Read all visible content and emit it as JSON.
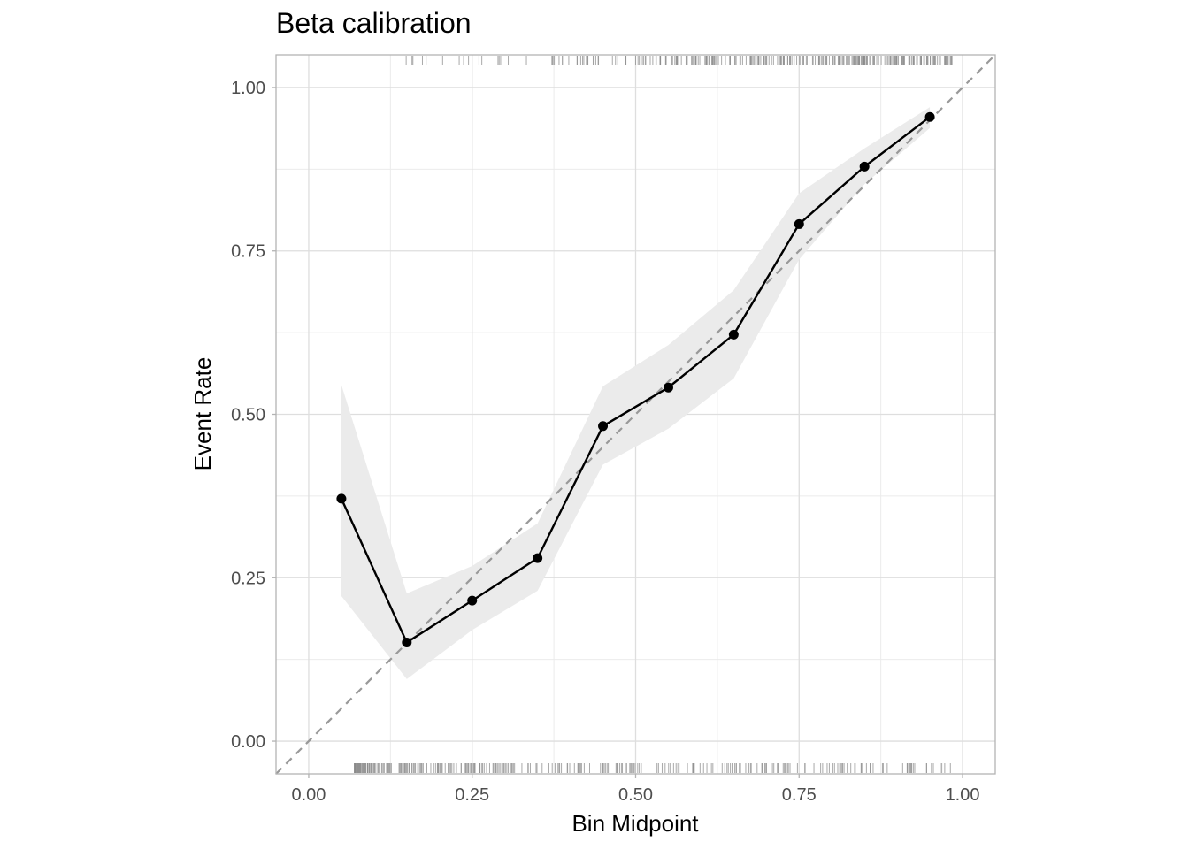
{
  "chart_data": {
    "type": "line",
    "title": "Beta calibration",
    "xlabel": "Bin Midpoint",
    "ylabel": "Event Rate",
    "xlim": [
      -0.05,
      1.05
    ],
    "ylim": [
      -0.05,
      1.05
    ],
    "x_ticks": [
      0,
      0.25,
      0.5,
      0.75,
      1
    ],
    "x_tick_labels": [
      "0.00",
      "0.25",
      "0.50",
      "0.75",
      "1.00"
    ],
    "y_ticks": [
      0,
      0.25,
      0.5,
      0.75,
      1
    ],
    "y_tick_labels": [
      "0.00",
      "0.25",
      "0.50",
      "0.75",
      "1.00"
    ],
    "grid": true,
    "reference_line": {
      "from": [
        0,
        0
      ],
      "to": [
        1,
        1
      ],
      "style": "dashed",
      "color": "#999999"
    },
    "series": [
      {
        "x": [
          0.05,
          0.15,
          0.25,
          0.35,
          0.45,
          0.55,
          0.65,
          0.75,
          0.85,
          0.95
        ],
        "y": [
          0.371,
          0.151,
          0.215,
          0.28,
          0.482,
          0.541,
          0.622,
          0.791,
          0.879,
          0.955
        ],
        "lower": [
          0.222,
          0.095,
          0.17,
          0.23,
          0.423,
          0.478,
          0.555,
          0.737,
          0.852,
          0.938
        ],
        "upper": [
          0.545,
          0.226,
          0.268,
          0.333,
          0.543,
          0.606,
          0.69,
          0.838,
          0.907,
          0.97
        ],
        "color": "#000000",
        "band_color": "#ebebeb"
      }
    ],
    "rug": {
      "color": "#8c8c8c",
      "top_range": [
        0.07,
        0.985
      ],
      "bottom_range": [
        0.07,
        0.985
      ]
    }
  }
}
